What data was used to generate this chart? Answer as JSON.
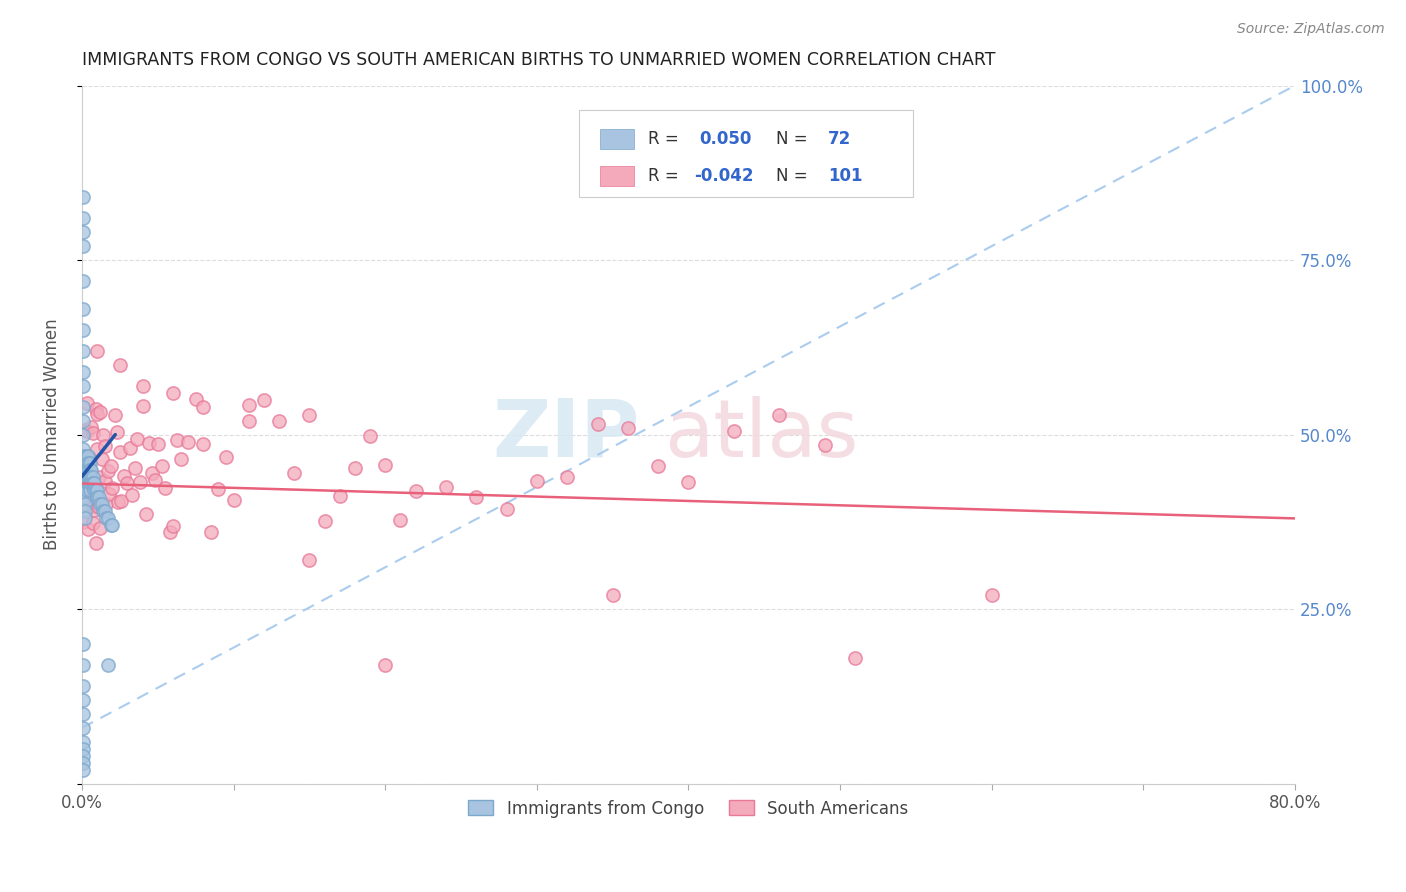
{
  "title": "IMMIGRANTS FROM CONGO VS SOUTH AMERICAN BIRTHS TO UNMARRIED WOMEN CORRELATION CHART",
  "source": "Source: ZipAtlas.com",
  "ylabel_left": "Births to Unmarried Women",
  "xlim": [
    0.0,
    0.8
  ],
  "ylim": [
    0.0,
    1.0
  ],
  "x_ticks": [
    0.0,
    0.1,
    0.2,
    0.3,
    0.4,
    0.5,
    0.6,
    0.7,
    0.8
  ],
  "y_ticks": [
    0.0,
    0.25,
    0.5,
    0.75,
    1.0
  ],
  "y_tick_labels_right": [
    "",
    "25.0%",
    "50.0%",
    "75.0%",
    "100.0%"
  ],
  "blue_color": "#A8C4E0",
  "blue_edge_color": "#7BA7CC",
  "pink_color": "#F4AABB",
  "pink_edge_color": "#E87898",
  "blue_line_color": "#2255AA",
  "pink_line_color": "#E8607A",
  "blue_dashed_color": "#AACCEE",
  "right_axis_color": "#5588CC",
  "watermark_zip_color": "#D8E8F4",
  "watermark_atlas_color": "#F4D8E0",
  "grid_color": "#DDDDDD",
  "legend_box_color": "#F5F5F5",
  "legend_edge_color": "#CCCCCC",
  "legend_text_color": "#333333",
  "legend_blue_val_color": "#3366CC",
  "legend_pink_val_color": "#CC3366",
  "title_color": "#222222",
  "source_color": "#888888",
  "axis_label_color": "#555555",
  "tick_label_color": "#555555",
  "blue_dots_x": [
    0.001,
    0.001,
    0.001,
    0.001,
    0.001,
    0.001,
    0.001,
    0.001,
    0.001,
    0.001,
    0.001,
    0.001,
    0.001,
    0.001,
    0.001,
    0.001,
    0.001,
    0.001,
    0.002,
    0.002,
    0.002,
    0.002,
    0.002,
    0.002,
    0.002,
    0.003,
    0.003,
    0.003,
    0.003,
    0.003,
    0.003,
    0.004,
    0.004,
    0.004,
    0.004,
    0.004,
    0.005,
    0.005,
    0.005,
    0.005,
    0.005,
    0.006,
    0.006,
    0.006,
    0.007,
    0.007,
    0.008,
    0.008,
    0.009,
    0.01,
    0.01,
    0.011,
    0.012,
    0.013,
    0.014,
    0.015,
    0.016,
    0.017,
    0.019,
    0.02,
    0.001,
    0.001,
    0.001,
    0.001,
    0.001,
    0.001,
    0.001,
    0.001,
    0.001,
    0.001,
    0.001,
    0.017
  ],
  "blue_dots_y": [
    0.84,
    0.81,
    0.79,
    0.77,
    0.72,
    0.68,
    0.65,
    0.62,
    0.59,
    0.57,
    0.54,
    0.52,
    0.5,
    0.48,
    0.47,
    0.46,
    0.45,
    0.44,
    0.43,
    0.43,
    0.42,
    0.41,
    0.4,
    0.39,
    0.38,
    0.47,
    0.46,
    0.45,
    0.44,
    0.43,
    0.42,
    0.47,
    0.46,
    0.45,
    0.44,
    0.43,
    0.46,
    0.45,
    0.44,
    0.43,
    0.42,
    0.45,
    0.44,
    0.43,
    0.44,
    0.43,
    0.43,
    0.42,
    0.42,
    0.42,
    0.41,
    0.41,
    0.4,
    0.4,
    0.39,
    0.39,
    0.38,
    0.38,
    0.37,
    0.37,
    0.2,
    0.17,
    0.14,
    0.12,
    0.1,
    0.08,
    0.06,
    0.05,
    0.04,
    0.03,
    0.02,
    0.17
  ],
  "pink_dots_x": [
    0.001,
    0.002,
    0.002,
    0.003,
    0.003,
    0.003,
    0.004,
    0.004,
    0.005,
    0.005,
    0.005,
    0.006,
    0.006,
    0.007,
    0.007,
    0.007,
    0.008,
    0.008,
    0.009,
    0.009,
    0.01,
    0.01,
    0.011,
    0.011,
    0.012,
    0.012,
    0.013,
    0.014,
    0.015,
    0.015,
    0.016,
    0.017,
    0.018,
    0.019,
    0.02,
    0.022,
    0.023,
    0.024,
    0.025,
    0.026,
    0.028,
    0.03,
    0.032,
    0.033,
    0.035,
    0.036,
    0.038,
    0.04,
    0.042,
    0.044,
    0.046,
    0.048,
    0.05,
    0.053,
    0.055,
    0.058,
    0.06,
    0.063,
    0.065,
    0.07,
    0.075,
    0.08,
    0.085,
    0.09,
    0.095,
    0.1,
    0.11,
    0.12,
    0.13,
    0.14,
    0.15,
    0.16,
    0.17,
    0.18,
    0.19,
    0.2,
    0.21,
    0.22,
    0.24,
    0.26,
    0.28,
    0.3,
    0.32,
    0.34,
    0.36,
    0.38,
    0.4,
    0.43,
    0.46,
    0.49,
    0.01,
    0.025,
    0.04,
    0.06,
    0.08,
    0.11,
    0.15,
    0.2,
    0.35,
    0.51,
    0.6
  ],
  "pink_dots_y": [
    0.44,
    0.43,
    0.42,
    0.44,
    0.43,
    0.41,
    0.44,
    0.43,
    0.43,
    0.42,
    0.41,
    0.43,
    0.42,
    0.44,
    0.42,
    0.4,
    0.43,
    0.41,
    0.43,
    0.42,
    0.44,
    0.42,
    0.43,
    0.41,
    0.43,
    0.42,
    0.44,
    0.43,
    0.43,
    0.42,
    0.44,
    0.43,
    0.42,
    0.44,
    0.43,
    0.44,
    0.43,
    0.42,
    0.44,
    0.43,
    0.43,
    0.44,
    0.43,
    0.42,
    0.44,
    0.43,
    0.43,
    0.44,
    0.43,
    0.42,
    0.44,
    0.43,
    0.44,
    0.43,
    0.42,
    0.44,
    0.43,
    0.43,
    0.44,
    0.43,
    0.44,
    0.43,
    0.43,
    0.44,
    0.43,
    0.44,
    0.43,
    0.44,
    0.43,
    0.43,
    0.44,
    0.43,
    0.43,
    0.44,
    0.43,
    0.44,
    0.43,
    0.43,
    0.44,
    0.43,
    0.44,
    0.43,
    0.43,
    0.44,
    0.43,
    0.43,
    0.42,
    0.43,
    0.43,
    0.43,
    0.62,
    0.6,
    0.57,
    0.55,
    0.53,
    0.51,
    0.32,
    0.17,
    0.27,
    0.18,
    0.27
  ],
  "blue_trend_x": [
    0.0,
    0.022
  ],
  "blue_trend_y": [
    0.44,
    0.5
  ],
  "pink_trend_x": [
    0.0,
    0.8
  ],
  "pink_trend_y": [
    0.43,
    0.38
  ],
  "diag_line_x": [
    0.0,
    0.8
  ],
  "diag_line_y": [
    0.08,
    1.0
  ]
}
